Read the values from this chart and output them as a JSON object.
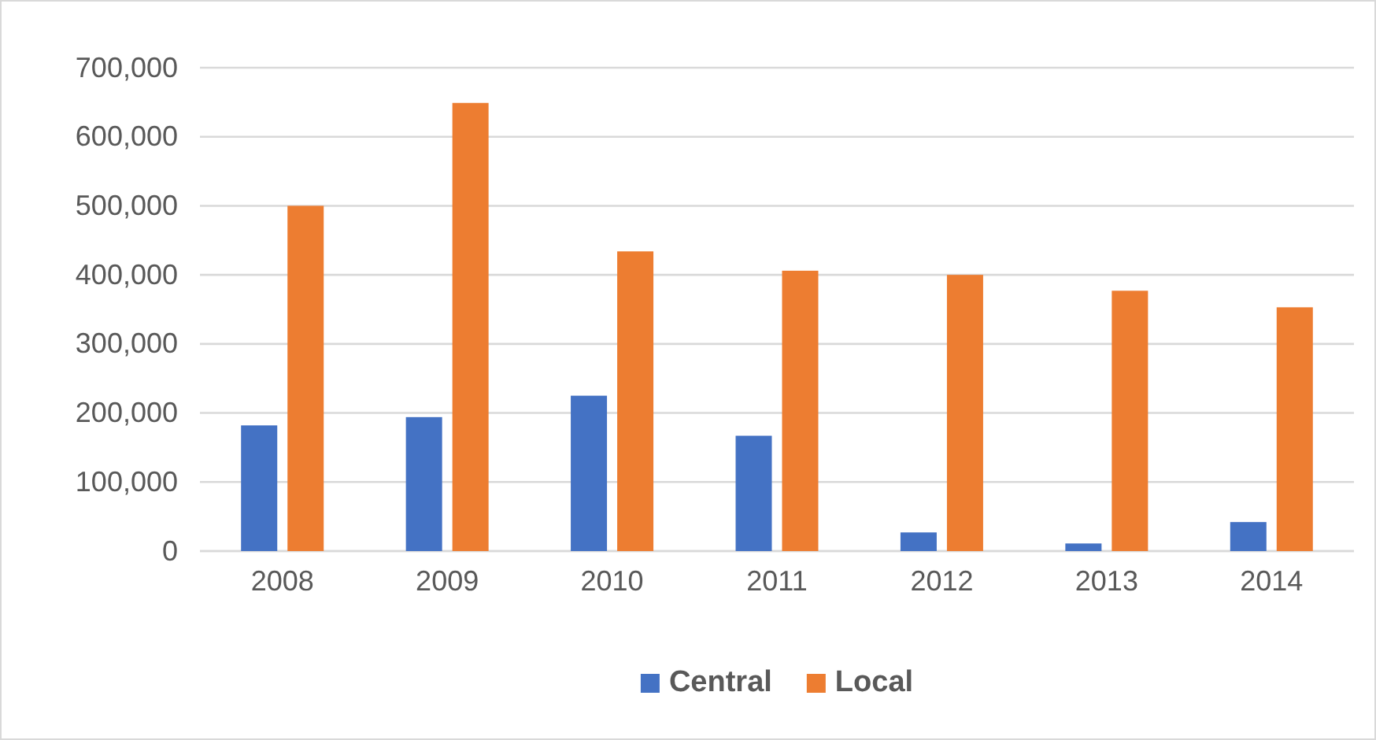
{
  "chart_data": {
    "type": "bar",
    "categories": [
      "2008",
      "2009",
      "2010",
      "2011",
      "2012",
      "2013",
      "2014"
    ],
    "series": [
      {
        "name": "Central",
        "color": "#4472c4",
        "values": [
          182000,
          194000,
          225000,
          167000,
          27000,
          11000,
          42000
        ]
      },
      {
        "name": "Local",
        "color": "#ed7d31",
        "values": [
          500000,
          649000,
          434000,
          406000,
          400000,
          377000,
          353000
        ]
      }
    ],
    "ylim": [
      0,
      700000
    ],
    "yticks": [
      {
        "value": 0,
        "label": "0"
      },
      {
        "value": 100000,
        "label": "100,000"
      },
      {
        "value": 200000,
        "label": "200,000"
      },
      {
        "value": 300000,
        "label": "300,000"
      },
      {
        "value": 400000,
        "label": "400,000"
      },
      {
        "value": 500000,
        "label": "500,000"
      },
      {
        "value": 600000,
        "label": "600,000"
      },
      {
        "value": 700000,
        "label": "700,000"
      }
    ],
    "grid": "y",
    "legend": "bottom"
  }
}
